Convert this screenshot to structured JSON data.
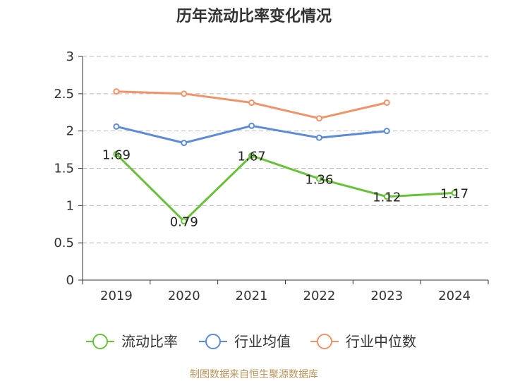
{
  "chart_data": {
    "type": "line",
    "title": "历年流动比率变化情况",
    "categories": [
      "2019",
      "2020",
      "2021",
      "2022",
      "2023",
      "2024"
    ],
    "ylim": [
      0,
      3
    ],
    "yticks": [
      "0",
      "0.5",
      "1",
      "1.5",
      "2",
      "2.5",
      "3"
    ],
    "grid": true,
    "legend_placement": "bottom",
    "series": [
      {
        "name": "流动比率",
        "color": "#67c23a",
        "values": [
          1.69,
          0.79,
          1.67,
          1.36,
          1.12,
          1.17
        ],
        "labels": [
          "1.69",
          "0.79",
          "1.67",
          "1.36",
          "1.12",
          "1.17"
        ]
      },
      {
        "name": "行业均值",
        "color": "#5b8bd9",
        "values": [
          2.06,
          1.84,
          2.07,
          1.91,
          2.0,
          null
        ]
      },
      {
        "name": "行业中位数",
        "color": "#f0956a",
        "values": [
          2.53,
          2.5,
          2.38,
          2.17,
          2.38,
          null
        ]
      }
    ],
    "source": "制图数据来自恒生聚源数据库"
  }
}
